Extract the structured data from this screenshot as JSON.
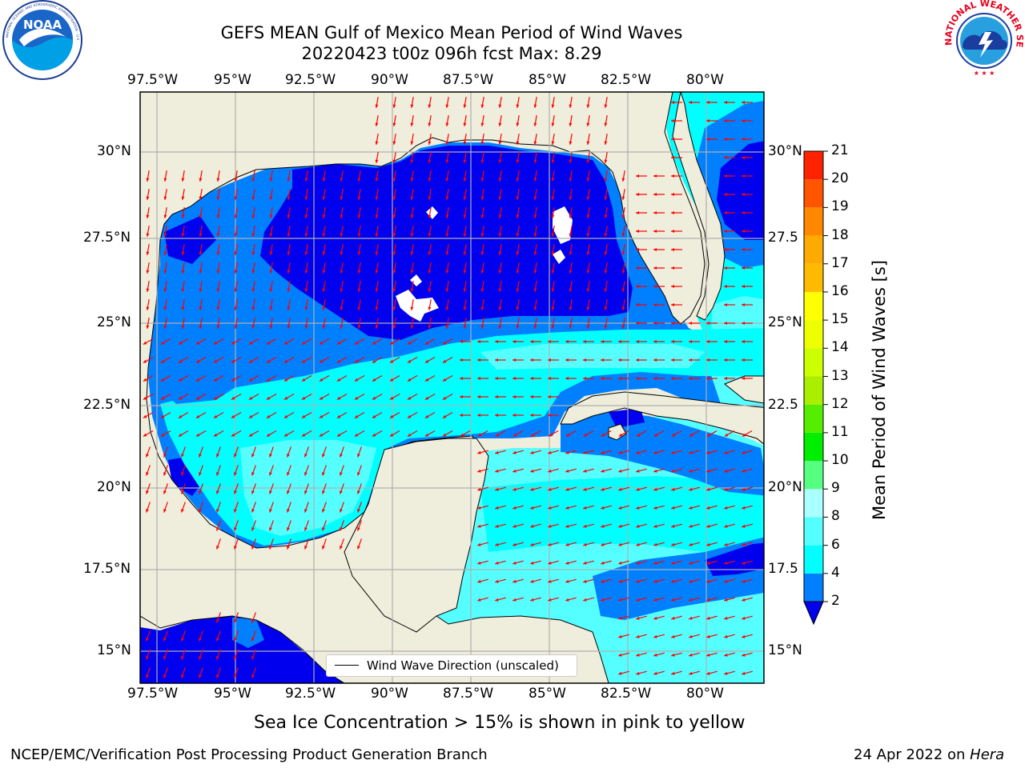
{
  "header": {
    "title_line1": "GEFS MEAN Gulf of Mexico Mean Period of Wind Waves",
    "title_line2": "20220423 t00z 096h fcst   Max: 8.29"
  },
  "logos": {
    "noaa_text": "NOAA",
    "noaa_ring_text": "NATIONAL OCEANIC AND ATMOSPHERIC ADMINISTRATION · U.S. DEPARTMENT OF COMMERCE",
    "nws_ring_text": "NATIONAL WEATHER SERVICE"
  },
  "map": {
    "lon_labels": [
      "97.5°W",
      "95°W",
      "92.5°W",
      "90°W",
      "87.5°W",
      "85°W",
      "82.5°W",
      "80°W"
    ],
    "lat_labels_left": [
      "30°N",
      "27.5°N",
      "25°N",
      "22.5°N",
      "20°N",
      "17.5°N",
      "15°N"
    ],
    "lat_labels_right": [
      "30°N",
      "27.5",
      "25°N",
      "22.5",
      "20°N",
      "17.5",
      "15°N"
    ],
    "colors": {
      "land": "#efeddb",
      "ocean_2_4": "#0080ff",
      "ocean_lt2": "#0000ee",
      "ocean_4_6": "#00ffff",
      "ocean_6_8": "#55ffff",
      "arrow": "#ff0000",
      "grid": "#b0b0b0"
    },
    "legend_text": "Wind Wave Direction (unscaled)"
  },
  "colorbar": {
    "title": "Mean Period of Wind Waves [s]",
    "tick_labels": [
      "2",
      "4",
      "6",
      "8",
      "9",
      "10",
      "11",
      "12",
      "13",
      "14",
      "15",
      "16",
      "17",
      "18",
      "19",
      "20",
      "21"
    ],
    "bins": [
      {
        "from": 2,
        "to": 4,
        "color": "#0080ff"
      },
      {
        "from": 4,
        "to": 6,
        "color": "#00ffff"
      },
      {
        "from": 6,
        "to": 8,
        "color": "#55ffff"
      },
      {
        "from": 8,
        "to": 9,
        "color": "#aaffff"
      },
      {
        "from": 9,
        "to": 10,
        "color": "#55ff80"
      },
      {
        "from": 10,
        "to": 11,
        "color": "#00ee00"
      },
      {
        "from": 11,
        "to": 12,
        "color": "#55ee00"
      },
      {
        "from": 12,
        "to": 13,
        "color": "#aaee00"
      },
      {
        "from": 13,
        "to": 14,
        "color": "#ccff00"
      },
      {
        "from": 14,
        "to": 15,
        "color": "#eeff00"
      },
      {
        "from": 15,
        "to": 16,
        "color": "#ffff00"
      },
      {
        "from": 16,
        "to": 17,
        "color": "#ffbb00"
      },
      {
        "from": 17,
        "to": 18,
        "color": "#ffaa00"
      },
      {
        "from": 18,
        "to": 19,
        "color": "#ff8800"
      },
      {
        "from": 19,
        "to": 20,
        "color": "#ff5500"
      },
      {
        "from": 20,
        "to": 21,
        "color": "#ff2200"
      }
    ],
    "under_color": "#0000ee"
  },
  "caption": "Sea Ice Concentration > 15% is shown in pink to yellow",
  "footer": {
    "left": "NCEP/EMC/Verification Post Processing Product Generation Branch",
    "right_date": "24 Apr 2022 on ",
    "right_host": "Hera"
  }
}
